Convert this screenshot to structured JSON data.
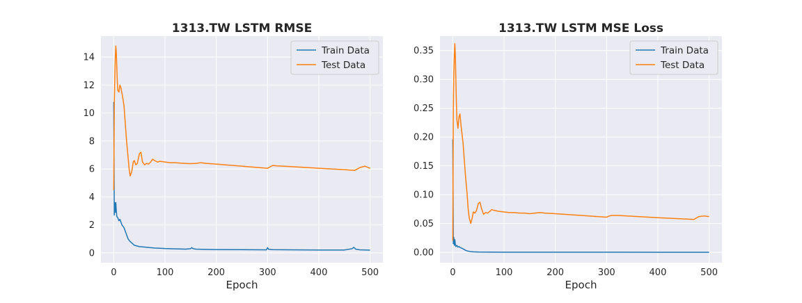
{
  "chart_data": [
    {
      "type": "line",
      "title": "1313.TW  LSTM RMSE",
      "xlabel": "Epoch",
      "ylabel": "",
      "xlim": [
        -25,
        525
      ],
      "ylim": [
        -0.7,
        15.5
      ],
      "xticks": [
        0,
        100,
        200,
        300,
        400,
        500
      ],
      "yticks": [
        0,
        2,
        4,
        6,
        8,
        10,
        12,
        14
      ],
      "ytick_labels": [
        "0",
        "2",
        "4",
        "6",
        "8",
        "10",
        "12",
        "14"
      ],
      "legend": "top-right",
      "grid": true,
      "series": [
        {
          "name": "Train Data",
          "color": "#1f77b4",
          "x": [
            0,
            1,
            2,
            3,
            4,
            5,
            6,
            8,
            10,
            12,
            14,
            16,
            18,
            20,
            22,
            25,
            28,
            31,
            34,
            37,
            40,
            45,
            50,
            60,
            70,
            80,
            90,
            100,
            120,
            140,
            150,
            152,
            155,
            160,
            180,
            200,
            250,
            298,
            300,
            302,
            310,
            350,
            400,
            450,
            465,
            468,
            472,
            480,
            500
          ],
          "y": [
            10.8,
            2.7,
            3.6,
            2.9,
            3.6,
            3.0,
            2.6,
            2.5,
            2.3,
            2.4,
            2.2,
            2.0,
            1.9,
            1.8,
            1.6,
            1.3,
            1.0,
            0.85,
            0.75,
            0.65,
            0.55,
            0.5,
            0.45,
            0.42,
            0.38,
            0.35,
            0.33,
            0.31,
            0.29,
            0.27,
            0.3,
            0.38,
            0.3,
            0.27,
            0.25,
            0.24,
            0.23,
            0.22,
            0.38,
            0.26,
            0.23,
            0.22,
            0.21,
            0.21,
            0.3,
            0.4,
            0.27,
            0.22,
            0.2
          ]
        },
        {
          "name": "Test Data",
          "color": "#ff7f0e",
          "x": [
            0,
            1,
            2,
            3,
            4,
            5,
            6,
            7,
            8,
            10,
            12,
            14,
            16,
            18,
            20,
            22,
            25,
            28,
            30,
            32,
            35,
            38,
            40,
            43,
            46,
            50,
            53,
            56,
            60,
            64,
            68,
            72,
            76,
            80,
            85,
            90,
            100,
            110,
            120,
            130,
            140,
            150,
            160,
            170,
            180,
            200,
            250,
            300,
            305,
            310,
            320,
            340,
            400,
            450,
            470,
            480,
            490,
            500
          ],
          "y": [
            4.5,
            10.5,
            12.5,
            14.0,
            14.8,
            14.3,
            13.2,
            12.2,
            11.6,
            11.5,
            12.0,
            11.8,
            11.4,
            11.0,
            10.5,
            9.5,
            8.0,
            6.8,
            6.0,
            5.5,
            5.8,
            6.5,
            6.6,
            6.3,
            6.4,
            7.1,
            7.2,
            6.5,
            6.3,
            6.4,
            6.35,
            6.5,
            6.7,
            6.6,
            6.5,
            6.55,
            6.5,
            6.45,
            6.45,
            6.42,
            6.4,
            6.38,
            6.4,
            6.45,
            6.4,
            6.35,
            6.2,
            6.05,
            6.15,
            6.25,
            6.22,
            6.18,
            6.05,
            5.95,
            5.9,
            6.1,
            6.2,
            6.05
          ]
        }
      ]
    },
    {
      "type": "line",
      "title": "1313.TW  LSTM MSE Loss",
      "xlabel": "Epoch",
      "ylabel": "",
      "xlim": [
        -25,
        525
      ],
      "ylim": [
        -0.018,
        0.375
      ],
      "xticks": [
        0,
        100,
        200,
        300,
        400,
        500
      ],
      "yticks": [
        0,
        0.05,
        0.1,
        0.15,
        0.2,
        0.25,
        0.3,
        0.35
      ],
      "ytick_labels": [
        "0.00",
        "0.05",
        "0.10",
        "0.15",
        "0.20",
        "0.25",
        "0.30",
        "0.35"
      ],
      "legend": "top-right",
      "grid": true,
      "series": [
        {
          "name": "Train Data",
          "color": "#1f77b4",
          "x": [
            0,
            1,
            2,
            3,
            4,
            5,
            6,
            8,
            10,
            12,
            15,
            18,
            22,
            26,
            30,
            35,
            40,
            50,
            70,
            100,
            200,
            300,
            400,
            500
          ],
          "y": [
            0.196,
            0.015,
            0.026,
            0.012,
            0.022,
            0.014,
            0.01,
            0.012,
            0.009,
            0.01,
            0.008,
            0.007,
            0.005,
            0.003,
            0.002,
            0.0012,
            0.0008,
            0.0005,
            0.0004,
            0.0003,
            0.0002,
            0.0002,
            0.0001,
            0.0001
          ]
        },
        {
          "name": "Test Data",
          "color": "#ff7f0e",
          "x": [
            0,
            1,
            2,
            3,
            4,
            5,
            6,
            7,
            8,
            10,
            12,
            14,
            16,
            18,
            20,
            22,
            25,
            28,
            30,
            32,
            35,
            38,
            40,
            43,
            46,
            50,
            53,
            56,
            60,
            64,
            68,
            72,
            76,
            80,
            85,
            90,
            100,
            110,
            120,
            130,
            140,
            150,
            160,
            170,
            180,
            200,
            250,
            300,
            305,
            310,
            320,
            340,
            400,
            450,
            470,
            480,
            490,
            500
          ],
          "y": [
            0.02,
            0.25,
            0.31,
            0.34,
            0.362,
            0.34,
            0.3,
            0.26,
            0.23,
            0.215,
            0.235,
            0.24,
            0.22,
            0.205,
            0.19,
            0.165,
            0.13,
            0.1,
            0.075,
            0.06,
            0.05,
            0.06,
            0.07,
            0.068,
            0.072,
            0.085,
            0.087,
            0.076,
            0.066,
            0.069,
            0.068,
            0.071,
            0.074,
            0.073,
            0.072,
            0.071,
            0.07,
            0.069,
            0.069,
            0.068,
            0.068,
            0.067,
            0.068,
            0.069,
            0.068,
            0.067,
            0.064,
            0.061,
            0.063,
            0.064,
            0.064,
            0.063,
            0.06,
            0.058,
            0.057,
            0.062,
            0.063,
            0.062
          ]
        }
      ]
    }
  ]
}
